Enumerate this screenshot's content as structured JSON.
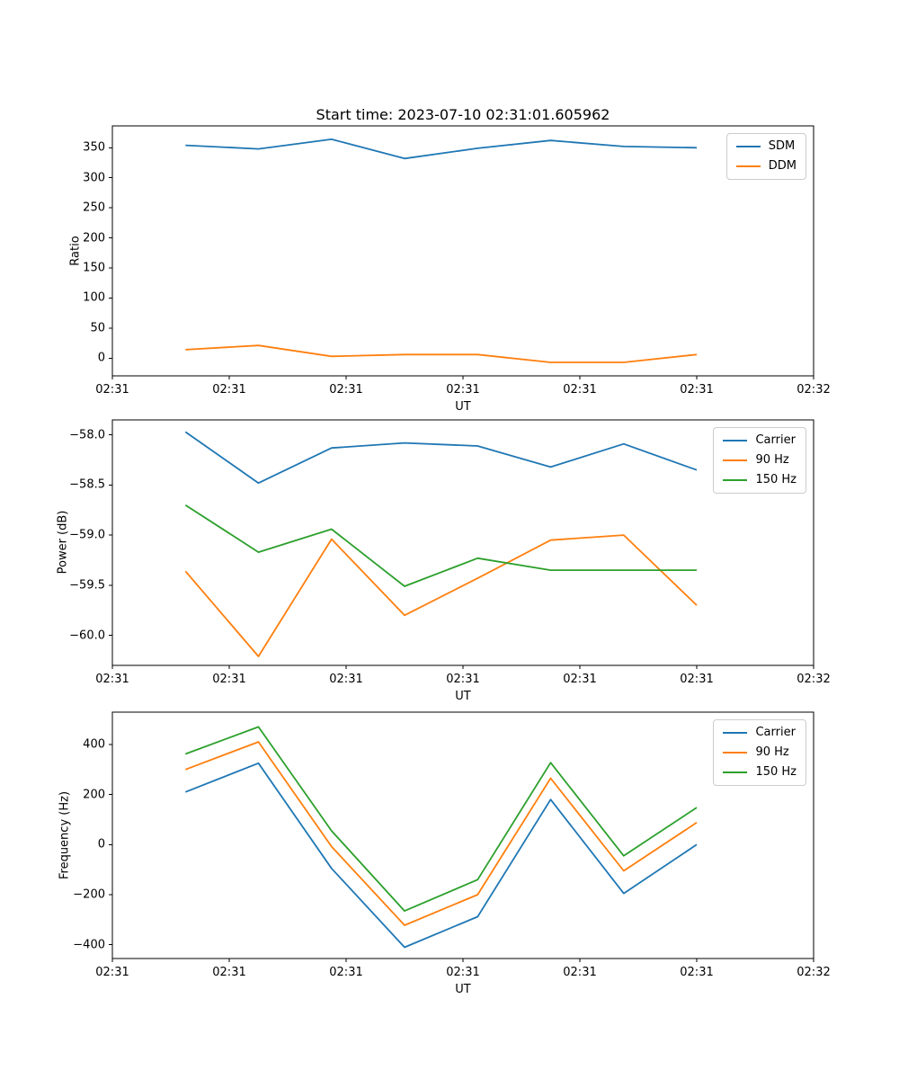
{
  "figure": {
    "title": "Start time: 2023-07-10 02:31:01.605962",
    "background": "#ffffff",
    "text_color": "#000000",
    "spine_color": "#000000"
  },
  "chart_data": [
    {
      "type": "line",
      "title": "Start time: 2023-07-10 02:31:01.605962",
      "xlabel": "UT",
      "ylabel": "Ratio",
      "grid": false,
      "legend_position": "upper right",
      "x_seconds_after_0231": [
        6.25,
        12.5,
        18.75,
        25,
        31.25,
        37.5,
        43.75,
        50
      ],
      "xlim_seconds": [
        0,
        60
      ],
      "xtick_values": [
        0,
        10,
        20,
        30,
        40,
        50,
        60
      ],
      "xtick_labels": [
        "02:31",
        "02:31",
        "02:31",
        "02:31",
        "02:31",
        "02:31",
        "02:32"
      ],
      "ylim": [
        -29.5,
        386.3
      ],
      "ytick_values": [
        0,
        50,
        100,
        150,
        200,
        250,
        300,
        350
      ],
      "ytick_labels": [
        "0",
        "50",
        "100",
        "150",
        "200",
        "250",
        "300",
        "350"
      ],
      "series": [
        {
          "name": "SDM",
          "color": "#1f77b4",
          "values": [
            354,
            348,
            364,
            332,
            349,
            362,
            352,
            350
          ]
        },
        {
          "name": "DDM",
          "color": "#ff7f0e",
          "values": [
            14,
            21,
            3,
            6,
            6,
            -7,
            -7,
            6
          ]
        }
      ]
    },
    {
      "type": "line",
      "title": "",
      "xlabel": "UT",
      "ylabel": "Power (dB)",
      "grid": false,
      "legend_position": "upper right",
      "x_seconds_after_0231": [
        6.25,
        12.5,
        18.75,
        25,
        31.25,
        37.5,
        43.75,
        50
      ],
      "xlim_seconds": [
        0,
        60
      ],
      "xtick_values": [
        0,
        10,
        20,
        30,
        40,
        50,
        60
      ],
      "xtick_labels": [
        "02:31",
        "02:31",
        "02:31",
        "02:31",
        "02:31",
        "02:31",
        "02:32"
      ],
      "ylim": [
        -60.3,
        -57.85
      ],
      "ytick_values": [
        -58.0,
        -58.5,
        -59.0,
        -59.5,
        -60.0
      ],
      "ytick_labels": [
        "−58.0",
        "−58.5",
        "−59.0",
        "−59.5",
        "−60.0"
      ],
      "series": [
        {
          "name": "Carrier",
          "color": "#1f77b4",
          "values": [
            -57.97,
            -58.48,
            -58.13,
            -58.08,
            -58.11,
            -58.32,
            -58.09,
            -58.35
          ]
        },
        {
          "name": "90 Hz",
          "color": "#ff7f0e",
          "values": [
            -59.36,
            -60.21,
            -59.04,
            -59.8,
            -59.43,
            -59.05,
            -59.0,
            -59.7
          ]
        },
        {
          "name": "150 Hz",
          "color": "#2ca02c",
          "values": [
            -58.7,
            -59.17,
            -58.94,
            -59.51,
            -59.23,
            -59.35,
            -59.35,
            -59.35
          ]
        }
      ]
    },
    {
      "type": "line",
      "title": "",
      "xlabel": "UT",
      "ylabel": "Frequency (Hz)",
      "grid": false,
      "legend_position": "upper right",
      "x_seconds_after_0231": [
        6.25,
        12.5,
        18.75,
        25,
        31.25,
        37.5,
        43.75,
        50
      ],
      "xlim_seconds": [
        0,
        60
      ],
      "xtick_values": [
        0,
        10,
        20,
        30,
        40,
        50,
        60
      ],
      "xtick_labels": [
        "02:31",
        "02:31",
        "02:31",
        "02:31",
        "02:31",
        "02:31",
        "02:32"
      ],
      "ylim": [
        -455,
        529
      ],
      "ytick_values": [
        400,
        200,
        0,
        -200,
        -400
      ],
      "ytick_labels": [
        "400",
        "200",
        "0",
        "−200",
        "−400"
      ],
      "series": [
        {
          "name": "Carrier",
          "color": "#1f77b4",
          "values": [
            210,
            325,
            -95,
            -410,
            -288,
            180,
            -195,
            0
          ]
        },
        {
          "name": "90 Hz",
          "color": "#ff7f0e",
          "values": [
            300,
            410,
            -8,
            -322,
            -200,
            265,
            -105,
            88
          ]
        },
        {
          "name": "150 Hz",
          "color": "#2ca02c",
          "values": [
            362,
            470,
            55,
            -265,
            -140,
            327,
            -45,
            148
          ]
        }
      ]
    }
  ]
}
